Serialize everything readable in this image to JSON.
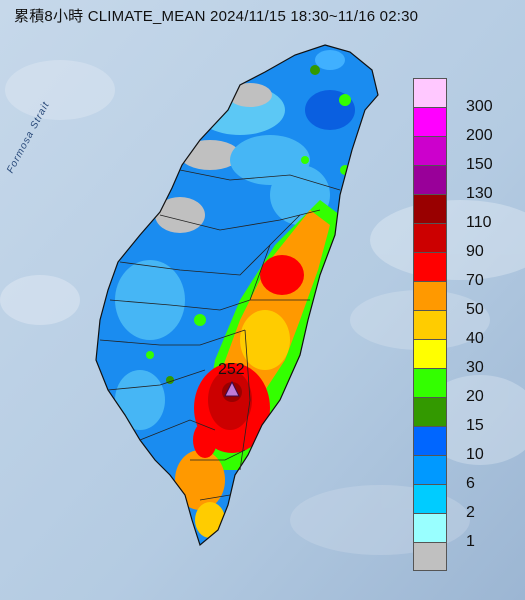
{
  "title": "累積8小時 CLIMATE_MEAN 2024/11/15 18:30~11/16 02:30",
  "sea_label": "Formosa Strait",
  "max_station_value": "252",
  "legend": {
    "levels": [
      {
        "label": "300",
        "color": "#ffc8ff"
      },
      {
        "label": "200",
        "color": "#ff00ff"
      },
      {
        "label": "150",
        "color": "#cc00cc"
      },
      {
        "label": "130",
        "color": "#990099"
      },
      {
        "label": "110",
        "color": "#990000"
      },
      {
        "label": "90",
        "color": "#cc0000"
      },
      {
        "label": "70",
        "color": "#ff0000"
      },
      {
        "label": "50",
        "color": "#ff9900"
      },
      {
        "label": "40",
        "color": "#ffcc00"
      },
      {
        "label": "30",
        "color": "#ffff00"
      },
      {
        "label": "20",
        "color": "#33ff00"
      },
      {
        "label": "15",
        "color": "#339900"
      },
      {
        "label": "10",
        "color": "#0066ff"
      },
      {
        "label": "6",
        "color": "#0099ff"
      },
      {
        "label": "2",
        "color": "#00ccff"
      },
      {
        "label": "1",
        "color": "#99ffff"
      },
      {
        "label": "",
        "color": "#c0c0c0"
      }
    ]
  }
}
